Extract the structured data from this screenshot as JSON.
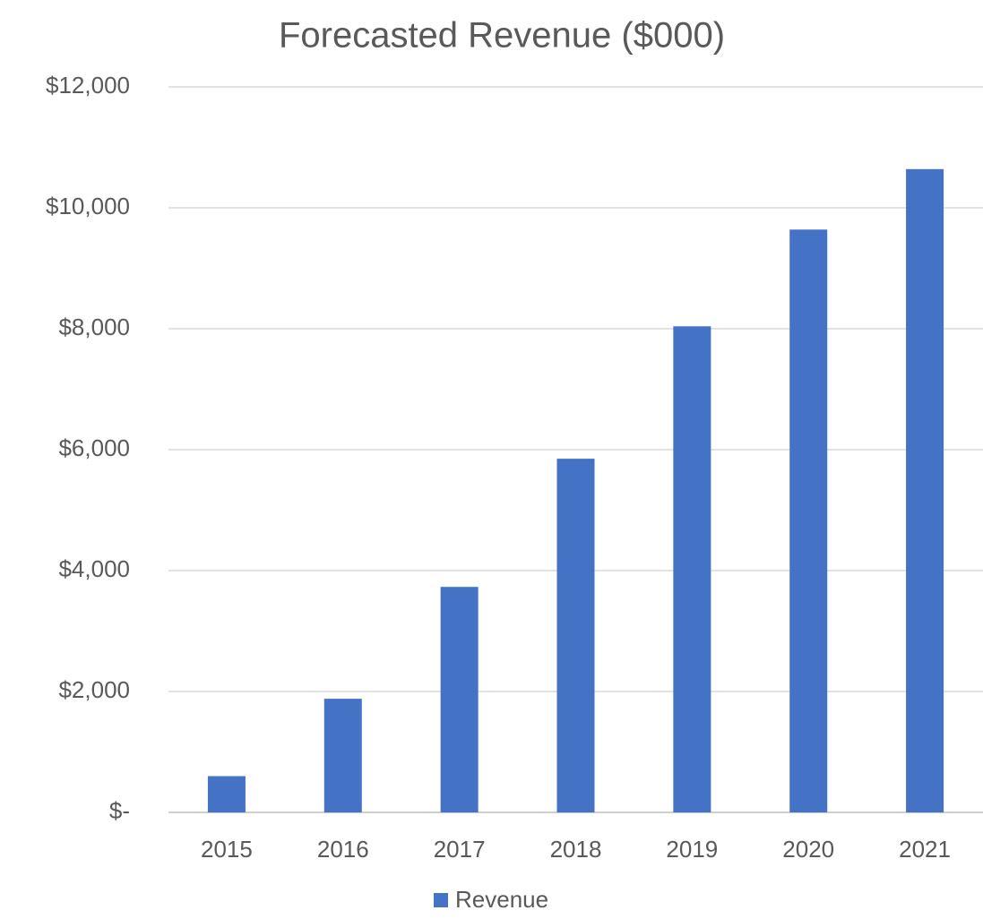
{
  "chart_data": {
    "type": "bar",
    "title": "Forecasted Revenue ($000)",
    "categories": [
      "2015",
      "2016",
      "2017",
      "2018",
      "2019",
      "2020",
      "2021"
    ],
    "series": [
      {
        "name": "Revenue",
        "color": "#4472c4",
        "values": [
          600,
          1880,
          3730,
          5850,
          8040,
          9640,
          10640
        ]
      }
    ],
    "ylim": [
      0,
      12000
    ],
    "yticks": [
      {
        "value": 0,
        "label": "$-"
      },
      {
        "value": 2000,
        "label": "$2,000"
      },
      {
        "value": 4000,
        "label": "$4,000"
      },
      {
        "value": 6000,
        "label": "$6,000"
      },
      {
        "value": 8000,
        "label": "$8,000"
      },
      {
        "value": 10000,
        "label": "$10,000"
      },
      {
        "value": 12000,
        "label": "$12,000"
      }
    ],
    "grid": true,
    "legend": "bottom"
  }
}
